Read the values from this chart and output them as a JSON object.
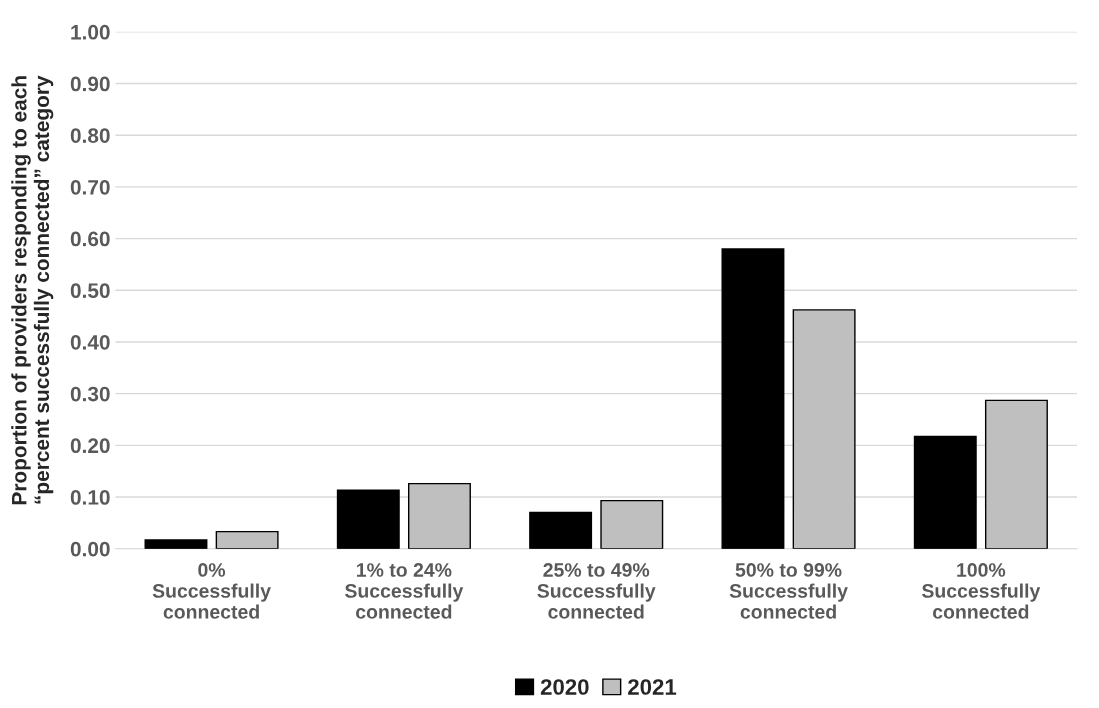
{
  "chart_data": {
    "type": "bar",
    "ylabel": "Proportion of providers responding to each\n“percent successfully connected” category",
    "categories": [
      "0%\nSuccessfully\nconnected",
      "1% to 24%\nSuccessfully\nconnected",
      "25% to 49%\nSuccessfully\nconnected",
      "50% to 99%\nSuccessfully\nconnected",
      "100%\nSuccessfully\nconnected"
    ],
    "series": [
      {
        "name": "2020",
        "color": "#000000",
        "values": [
          0.017,
          0.113,
          0.07,
          0.58,
          0.217
        ]
      },
      {
        "name": "2021",
        "color": "#bfbfbf",
        "values": [
          0.033,
          0.126,
          0.093,
          0.462,
          0.287
        ]
      }
    ],
    "ylim": [
      0,
      1
    ],
    "yticks": [
      {
        "value": 0,
        "label": "0.00"
      },
      {
        "value": 0.1,
        "label": "0.10"
      },
      {
        "value": 0.2,
        "label": "0.20"
      },
      {
        "value": 0.3,
        "label": "0.30"
      },
      {
        "value": 0.4,
        "label": "0.40"
      },
      {
        "value": 0.5,
        "label": "0.50"
      },
      {
        "value": 0.6,
        "label": "0.60"
      },
      {
        "value": 0.7,
        "label": "0.70"
      },
      {
        "value": 0.8,
        "label": "0.80"
      },
      {
        "value": 0.9,
        "label": "0.90"
      },
      {
        "value": 1,
        "label": "1.00"
      }
    ],
    "grid": "y",
    "legend": "bottom"
  }
}
